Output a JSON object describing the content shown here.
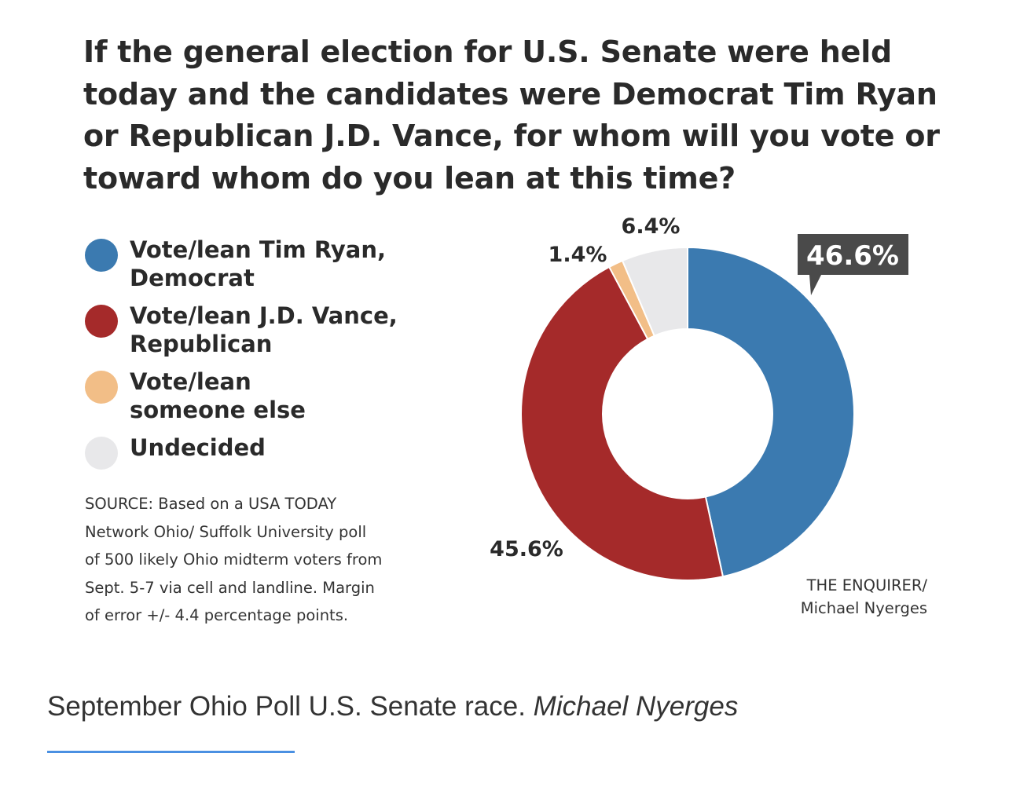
{
  "title": "If the general election for U.S. Senate were held today and the candidates were Democrat Tim Ryan or Republican J.D. Vance, for whom will you vote or toward whom do you lean at this time?",
  "legend": {
    "items": [
      {
        "label_line1": "Vote/lean Tim Ryan,",
        "label_line2": "Democrat",
        "color": "#3b7ab0"
      },
      {
        "label_line1": "Vote/lean J.D. Vance,",
        "label_line2": "Republican",
        "color": "#a52a2a"
      },
      {
        "label_line1": "Vote/lean",
        "label_line2": "someone else",
        "color": "#f2be87"
      },
      {
        "label_line1": "Undecided",
        "label_line2": "",
        "color": "#e8e8ea"
      }
    ]
  },
  "source_lines": [
    "SOURCE: Based on a USA TODAY",
    "Network Ohio/ Suffolk University poll",
    "of 500 likely Ohio midterm voters from",
    "Sept. 5-7 via cell and landline. Margin",
    "of error +/- 4.4 percentage points."
  ],
  "credit": {
    "line1": "THE ENQUIRER/",
    "line2": "Michael Nyerges"
  },
  "caption": {
    "text": "September Ohio Poll U.S. Senate race.",
    "credit": "Michael Nyerges"
  },
  "chart_data": {
    "type": "pie",
    "variant": "donut",
    "slices": [
      {
        "name": "Vote/lean Tim Ryan, Democrat",
        "value": 46.6,
        "label": "46.6%",
        "color": "#3b7ab0",
        "callout": true
      },
      {
        "name": "Vote/lean J.D. Vance, Republican",
        "value": 45.6,
        "label": "45.6%",
        "color": "#a52a2a"
      },
      {
        "name": "Vote/lean someone else",
        "value": 1.4,
        "label": "1.4%",
        "color": "#f2be87"
      },
      {
        "name": "Undecided",
        "value": 6.4,
        "label": "6.4%",
        "color": "#e8e8ea"
      }
    ],
    "start": "top",
    "direction": "clockwise"
  }
}
